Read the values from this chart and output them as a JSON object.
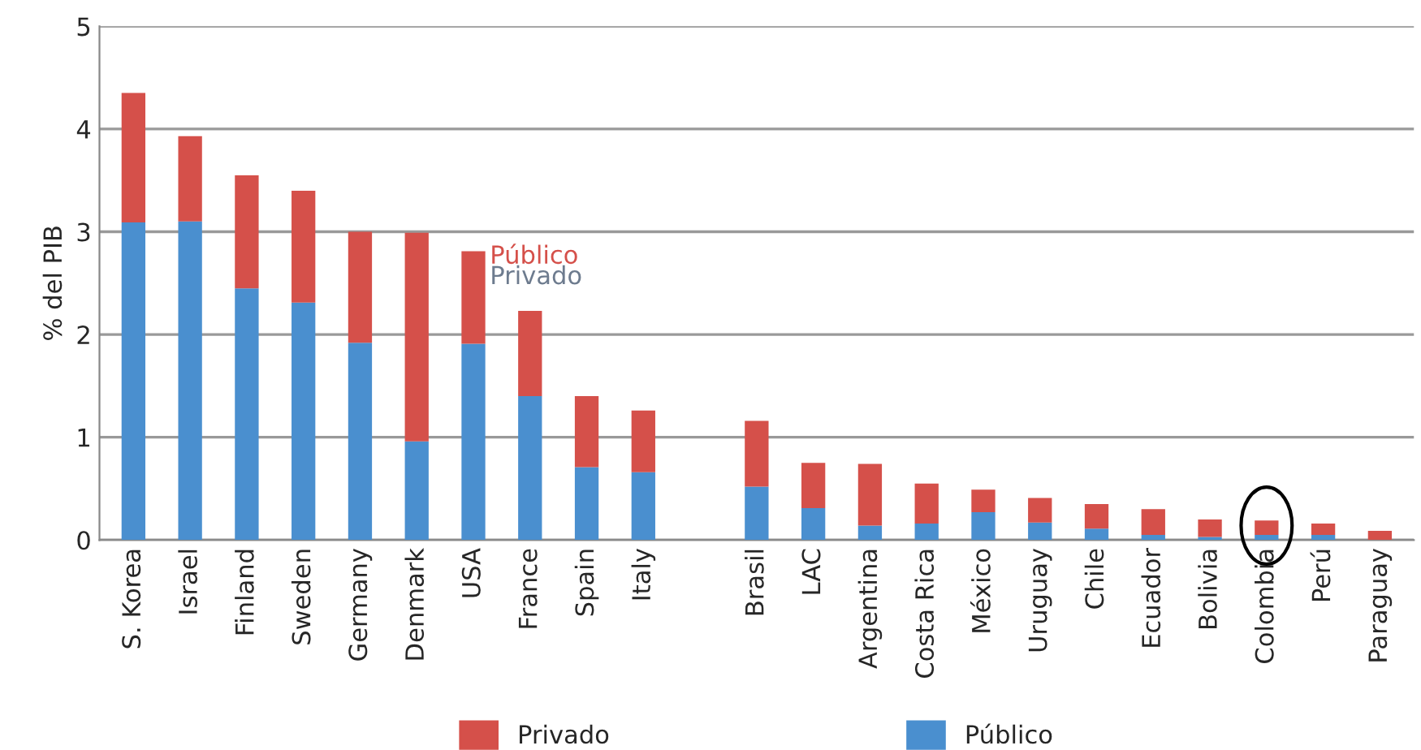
{
  "chart_data": {
    "type": "bar",
    "stacked": true,
    "ylabel": "% del PIB",
    "categories": [
      "S. Korea",
      "Israel",
      "Finland",
      "Sweden",
      "Germany",
      "Denmark",
      "USA",
      "France",
      "Spain",
      "Italy",
      null,
      "Brasil",
      "LAC",
      "Argentina",
      "Costa Rica",
      "México",
      "Uruguay",
      "Chile",
      "Ecuador",
      "Bolivia",
      "Colombia",
      "Perú",
      "Paraguay"
    ],
    "series": [
      {
        "name": "Público",
        "color": "#4a8fcf",
        "values": [
          3.09,
          3.1,
          2.45,
          2.31,
          1.92,
          0.96,
          1.91,
          1.4,
          0.71,
          0.66,
          null,
          0.52,
          0.31,
          0.14,
          0.16,
          0.27,
          0.17,
          0.11,
          0.05,
          0.03,
          0.05,
          0.05,
          0.0
        ]
      },
      {
        "name": "Privado",
        "color": "#d5504a",
        "values": [
          1.26,
          0.83,
          1.1,
          1.09,
          1.08,
          2.03,
          0.9,
          0.83,
          0.69,
          0.6,
          null,
          0.64,
          0.44,
          0.6,
          0.39,
          0.22,
          0.24,
          0.24,
          0.25,
          0.17,
          0.14,
          0.11,
          0.09
        ]
      }
    ],
    "ylim": [
      0,
      5
    ],
    "yticks": [
      0,
      1,
      2,
      3,
      4,
      5
    ],
    "grid": "y",
    "legend": "bottom",
    "annotations": [
      "Público",
      "Privado"
    ]
  }
}
